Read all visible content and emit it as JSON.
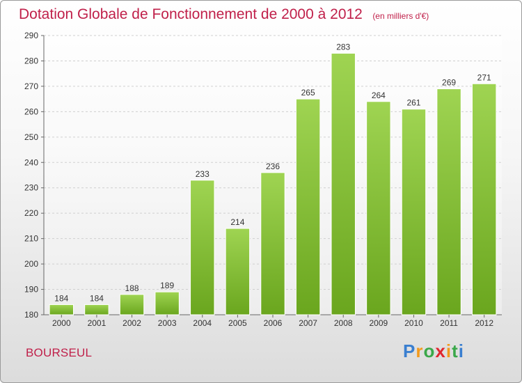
{
  "chart_data": {
    "type": "bar",
    "title": "Dotation Globale de Fonctionnement de 2000 à 2012",
    "subtitle": "(en milliers d'€)",
    "categories": [
      "2000",
      "2001",
      "2002",
      "2003",
      "2004",
      "2005",
      "2006",
      "2007",
      "2008",
      "2009",
      "2010",
      "2011",
      "2012"
    ],
    "values": [
      184,
      184,
      188,
      189,
      233,
      214,
      236,
      265,
      283,
      264,
      261,
      269,
      271
    ],
    "ylim": [
      180,
      290
    ],
    "yticks": [
      180,
      190,
      200,
      210,
      220,
      230,
      240,
      250,
      260,
      270,
      280,
      290
    ],
    "xlabel": "",
    "ylabel": "",
    "grid": true,
    "colors": {
      "bar_light": "#9fd452",
      "bar_dark": "#6aa61e",
      "text": "#c0204a"
    }
  },
  "footer": {
    "place": "BOURSEUL",
    "logo": [
      "P",
      "r",
      "o",
      "x",
      "i",
      "t",
      "i"
    ],
    "logo_colors": [
      "#3a7fd0",
      "#f29a1e",
      "#3aa84a",
      "#e0262f",
      "#f29a1e",
      "#3aa84a",
      "#3a7fd0"
    ]
  }
}
